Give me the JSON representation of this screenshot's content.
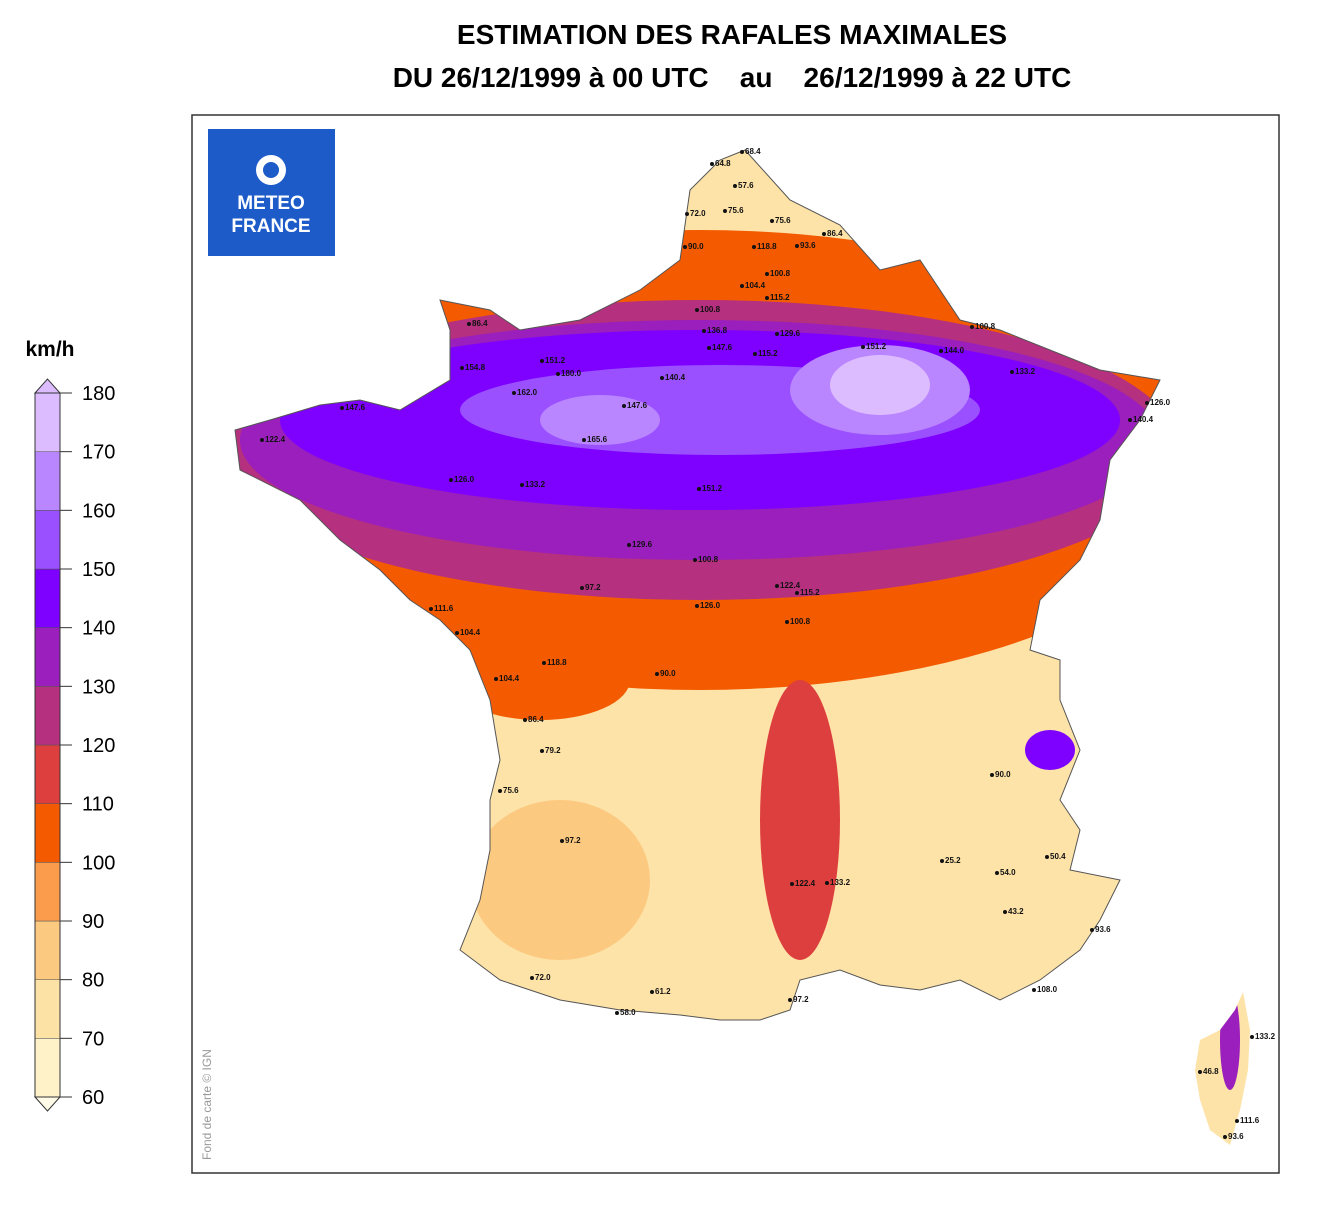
{
  "map": {
    "title": "ESTIMATION DES RAFALES MAXIMALES",
    "subtitle": "DU 26/12/1999 à 00 UTC    au    26/12/1999 à 22 UTC",
    "logo": [
      "METEO",
      "FRANCE"
    ],
    "credit": "Fond de carte © IGN",
    "colorbar": {
      "unit": "km/h",
      "ticks": [
        60,
        70,
        80,
        90,
        100,
        110,
        120,
        130,
        140,
        150,
        160,
        170,
        180
      ],
      "colors": [
        "#fff2c8",
        "#fde2a6",
        "#fcc980",
        "#fb9c4c",
        "#f45a00",
        "#dd3f3f",
        "#b5307f",
        "#9a1fbd",
        "#7e00ff",
        "#9a50ff",
        "#b986ff",
        "#dcbcff"
      ]
    },
    "stations": [
      "68.4",
      "64.8",
      "57.6",
      "72.0",
      "75.6",
      "75.6",
      "86.4",
      "90.0",
      "118.8",
      "93.6",
      "100.8",
      "104.4",
      "115.2",
      "100.8",
      "136.8",
      "129.6",
      "147.6",
      "115.2",
      "151.2",
      "144.0",
      "100.8",
      "133.2",
      "86.4",
      "151.2",
      "180.0",
      "154.8",
      "162.0",
      "165.6",
      "147.6",
      "140.4",
      "126.0",
      "140.4",
      "122.4",
      "147.6",
      "126.0",
      "133.2",
      "151.2",
      "129.6",
      "100.8",
      "126.0",
      "122.4",
      "115.2",
      "100.8",
      "111.6",
      "104.4",
      "97.2",
      "104.4",
      "118.8",
      "90.0",
      "86.4",
      "79.2",
      "75.6",
      "97.2",
      "72.0",
      "61.2",
      "58.0",
      "54.0",
      "50.4",
      "43.2",
      "25.2",
      "108.0",
      "93.6",
      "133.2",
      "111.6",
      "93.6",
      "46.8",
      "97.2",
      "133.2",
      "122.4",
      "90.0"
    ]
  }
}
